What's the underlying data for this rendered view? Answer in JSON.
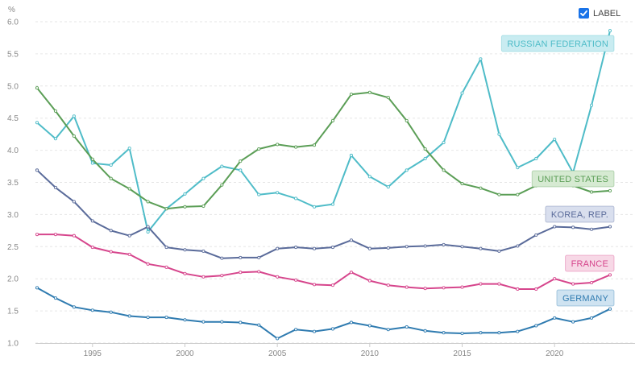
{
  "controls": {
    "label_toggle": {
      "text": "LABEL",
      "checked": true,
      "color": "#1a73e8"
    }
  },
  "chart_data": {
    "type": "line",
    "title": "",
    "xlabel": "",
    "ylabel": "%",
    "xlim": [
      1992,
      2023
    ],
    "ylim": [
      1.0,
      6.0
    ],
    "grid": true,
    "y_ticks": [
      "1.0",
      "1.5",
      "2.0",
      "2.5",
      "3.0",
      "3.5",
      "4.0",
      "4.5",
      "5.0",
      "5.5",
      "6.0"
    ],
    "x_ticks": [
      "1995",
      "2000",
      "2005",
      "2010",
      "2015",
      "2020"
    ],
    "x": [
      1992,
      1993,
      1994,
      1995,
      1996,
      1997,
      1998,
      1999,
      2000,
      2001,
      2002,
      2003,
      2004,
      2005,
      2006,
      2007,
      2008,
      2009,
      2010,
      2011,
      2012,
      2013,
      2014,
      2015,
      2016,
      2017,
      2018,
      2019,
      2020,
      2021,
      2022,
      2023
    ],
    "series": [
      {
        "name": "RUSSIAN FEDERATION",
        "color": "#4fbcc8",
        "label_bg": "#c9ecf1",
        "values": [
          4.43,
          4.18,
          4.53,
          3.8,
          3.77,
          4.03,
          2.73,
          3.09,
          3.32,
          3.56,
          3.75,
          3.69,
          3.31,
          3.34,
          3.25,
          3.12,
          3.16,
          3.92,
          3.59,
          3.43,
          3.69,
          3.87,
          4.12,
          4.89,
          5.42,
          4.25,
          3.73,
          3.87,
          4.17,
          3.65,
          4.7,
          5.86
        ]
      },
      {
        "name": "UNITED STATES",
        "color": "#5b9e56",
        "label_bg": "#d6ead2",
        "values": [
          4.97,
          4.61,
          4.22,
          3.86,
          3.56,
          3.4,
          3.2,
          3.09,
          3.12,
          3.13,
          3.46,
          3.83,
          4.02,
          4.09,
          4.05,
          4.08,
          4.46,
          4.87,
          4.9,
          4.82,
          4.46,
          4.02,
          3.69,
          3.48,
          3.41,
          3.31,
          3.31,
          3.45,
          3.55,
          3.45,
          3.35,
          3.37
        ]
      },
      {
        "name": "KOREA, REP.",
        "color": "#5a6b9a",
        "label_bg": "#d9dfee",
        "values": [
          3.69,
          3.42,
          3.2,
          2.9,
          2.75,
          2.67,
          2.81,
          2.49,
          2.45,
          2.43,
          2.32,
          2.33,
          2.33,
          2.47,
          2.49,
          2.47,
          2.49,
          2.6,
          2.47,
          2.48,
          2.5,
          2.51,
          2.53,
          2.5,
          2.47,
          2.43,
          2.51,
          2.68,
          2.81,
          2.8,
          2.77,
          2.81
        ]
      },
      {
        "name": "FRANCE",
        "color": "#d6458c",
        "label_bg": "#f7d8e6",
        "values": [
          2.69,
          2.69,
          2.67,
          2.49,
          2.42,
          2.38,
          2.23,
          2.18,
          2.08,
          2.03,
          2.05,
          2.1,
          2.11,
          2.03,
          1.98,
          1.91,
          1.9,
          2.1,
          1.97,
          1.9,
          1.87,
          1.85,
          1.86,
          1.87,
          1.92,
          1.92,
          1.84,
          1.84,
          2.0,
          1.92,
          1.94,
          2.06
        ]
      },
      {
        "name": "GERMANY",
        "color": "#2f7bb0",
        "label_bg": "#cfe3f1",
        "values": [
          1.86,
          1.7,
          1.56,
          1.51,
          1.48,
          1.42,
          1.4,
          1.4,
          1.36,
          1.33,
          1.33,
          1.32,
          1.28,
          1.07,
          1.21,
          1.18,
          1.22,
          1.32,
          1.27,
          1.21,
          1.25,
          1.19,
          1.16,
          1.15,
          1.16,
          1.16,
          1.18,
          1.27,
          1.39,
          1.33,
          1.39,
          1.53
        ]
      }
    ],
    "legend": "inline-labels-right"
  }
}
